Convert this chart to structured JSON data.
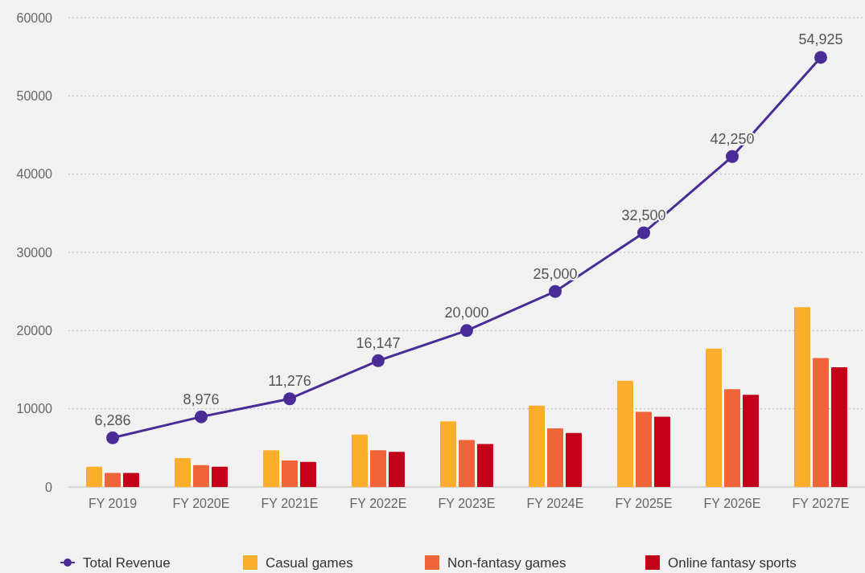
{
  "chart_data": {
    "type": "bar",
    "categories": [
      "FY 2019",
      "FY 2020E",
      "FY 2021E",
      "FY 2022E",
      "FY 2023E",
      "FY 2024E",
      "FY 2025E",
      "FY 2026E",
      "FY 2027E"
    ],
    "series": [
      {
        "name": "Total Revenue",
        "type": "line",
        "color": "#4a2c96",
        "values": [
          6286,
          8976,
          11276,
          16147,
          20000,
          25000,
          32500,
          42250,
          54925
        ],
        "value_labels": [
          "6,286",
          "8,976",
          "11,276",
          "16,147",
          "20,000",
          "25,000",
          "32,500",
          "42,250",
          "54,925"
        ]
      },
      {
        "name": "Casual games",
        "color": "#fbad2c",
        "values": [
          2600,
          3700,
          4700,
          6700,
          8400,
          10400,
          13600,
          17700,
          23000
        ]
      },
      {
        "name": "Non-fantasy games",
        "color": "#ef6439",
        "values": [
          1800,
          2800,
          3400,
          4700,
          6000,
          7500,
          9600,
          12500,
          16500
        ]
      },
      {
        "name": "Online fantasy sports",
        "color": "#c2001a",
        "values": [
          1800,
          2600,
          3200,
          4500,
          5500,
          6900,
          9000,
          11800,
          15300
        ]
      }
    ],
    "ylim": [
      0,
      60000
    ],
    "yticks": [
      0,
      10000,
      20000,
      30000,
      40000,
      50000,
      60000
    ],
    "grid": "y",
    "legend": "bottom",
    "marker": "circle"
  }
}
